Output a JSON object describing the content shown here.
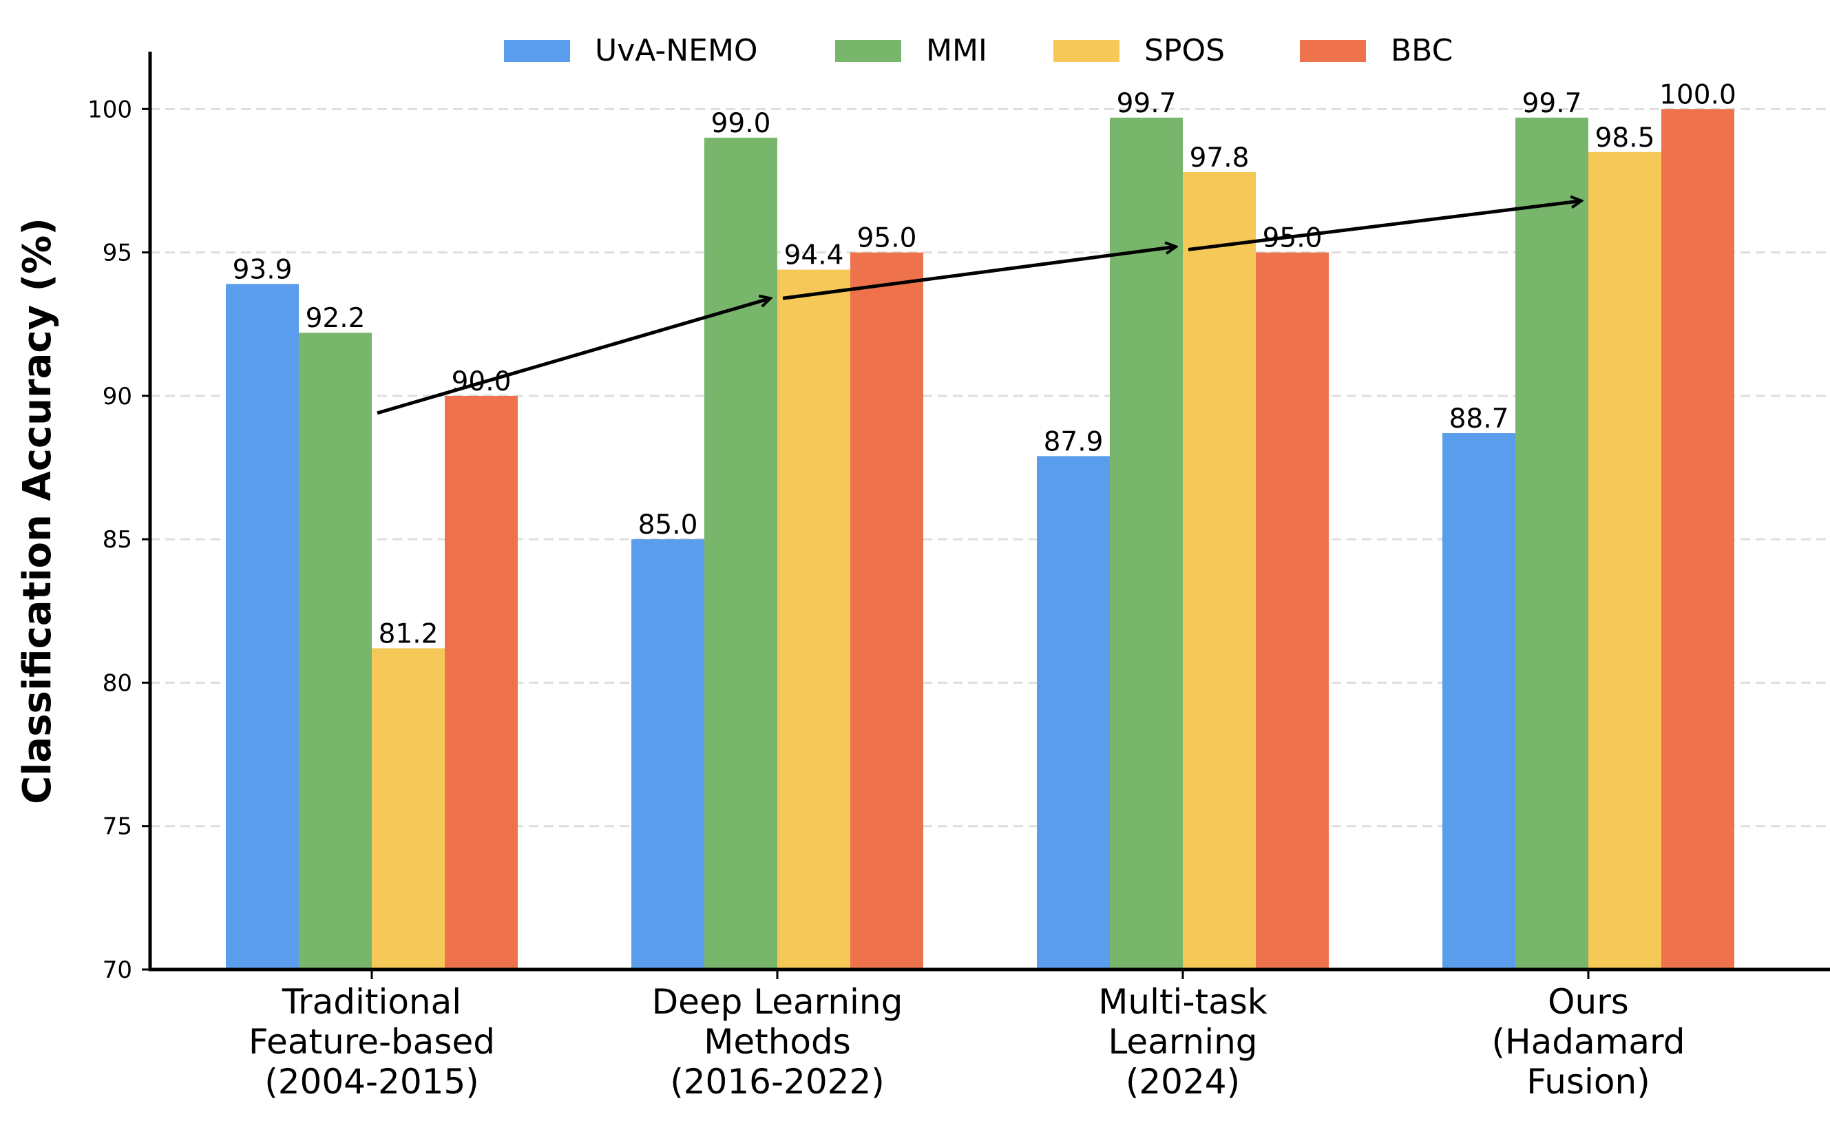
{
  "chart_data": {
    "type": "bar",
    "ylabel": "Classification Accuracy (%)",
    "ylim": [
      70,
      102
    ],
    "yticks": [
      70,
      75,
      80,
      85,
      90,
      95,
      100
    ],
    "grid": "horizontal dashed",
    "legend_position": "top-center",
    "categories": [
      [
        "Traditional",
        "Feature-based",
        "(2004-2015)"
      ],
      [
        "Deep Learning",
        "Methods",
        "(2016-2022)"
      ],
      [
        "Multi-task",
        "Learning",
        "(2024)"
      ],
      [
        "Ours",
        "(Hadamard",
        "Fusion)"
      ]
    ],
    "series": [
      {
        "name": "UvA-NEMO",
        "color": "#5b9ded",
        "values": [
          93.9,
          85.0,
          87.9,
          88.7
        ],
        "labels": [
          "93.9",
          "85.0",
          "87.9",
          "88.7"
        ]
      },
      {
        "name": "MMI",
        "color": "#78b66b",
        "values": [
          92.2,
          99.0,
          99.7,
          99.7
        ],
        "labels": [
          "92.2",
          "99.0",
          "99.7",
          "99.7"
        ]
      },
      {
        "name": "SPOS",
        "color": "#f5c858",
        "values": [
          81.2,
          94.4,
          97.8,
          98.5
        ],
        "labels": [
          "81.2",
          "94.4",
          "97.8",
          "98.5"
        ]
      },
      {
        "name": "BBC",
        "color": "#ee734d",
        "values": [
          90.0,
          95.0,
          95.0,
          100.0
        ],
        "labels": [
          "90.0",
          "95.0",
          "95.0",
          "100.0"
        ]
      }
    ],
    "trend_arrows": [
      {
        "from": [
          0,
          89.4
        ],
        "to": [
          1,
          93.4
        ]
      },
      {
        "from": [
          1,
          93.4
        ],
        "to": [
          2,
          95.2
        ]
      },
      {
        "from": [
          2,
          95.1
        ],
        "to": [
          3,
          96.8
        ]
      }
    ]
  }
}
